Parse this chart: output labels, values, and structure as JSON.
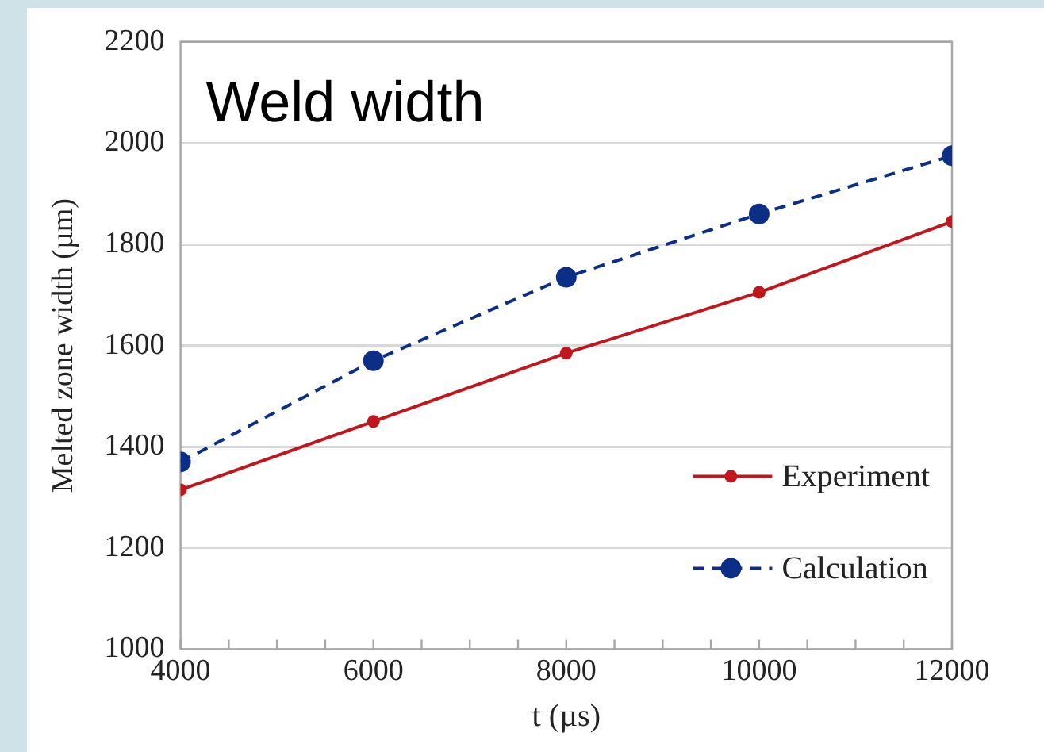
{
  "chart_data": {
    "type": "line",
    "title": "Weld width",
    "xlabel": "t (µs)",
    "ylabel": "Melted zone width (µm)",
    "x": [
      4000,
      6000,
      8000,
      10000,
      12000
    ],
    "series": [
      {
        "name": "Experiment",
        "color": "#c0161c",
        "values": [
          1315,
          1450,
          1585,
          1705,
          1845
        ],
        "line_style": "solid"
      },
      {
        "name": "Calculation",
        "color": "#0b2f86",
        "values": [
          1370,
          1570,
          1735,
          1860,
          1975
        ],
        "line_style": "dashed"
      }
    ],
    "xlim": [
      4000,
      12000
    ],
    "ylim": [
      1000,
      2200
    ],
    "xticks": [
      4000,
      {
        "value": 4500,
        "label": null
      },
      {
        "value": 5000,
        "label": null
      },
      {
        "value": 5500,
        "label": null
      },
      6000,
      {
        "value": 6500,
        "label": null
      },
      {
        "value": 7000,
        "label": null
      },
      {
        "value": 7500,
        "label": null
      },
      8000,
      {
        "value": 8500,
        "label": null
      },
      {
        "value": 9000,
        "label": null
      },
      {
        "value": 9500,
        "label": null
      },
      10000,
      {
        "value": 10500,
        "label": null
      },
      {
        "value": 11000,
        "label": null
      },
      {
        "value": 11500,
        "label": null
      },
      12000
    ],
    "yticks": [
      1000,
      1200,
      1400,
      1600,
      1800,
      2000,
      2200
    ],
    "grid": "y",
    "legend": "bottom right",
    "marker": "circle"
  }
}
